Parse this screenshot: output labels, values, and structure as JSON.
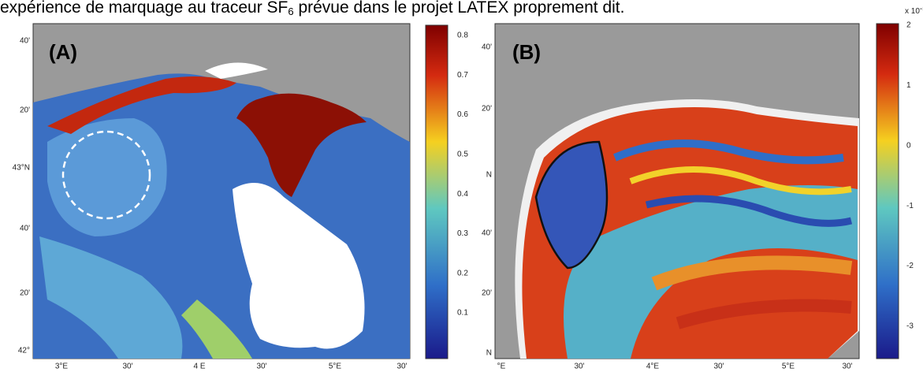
{
  "caption": {
    "text": "expérience de marquage au traceur SF",
    "subscript": "6",
    "rest": " prévue dans le projet LATEX proprement dit."
  },
  "panels": [
    {
      "label": "(A)",
      "y_labels": [
        "40'",
        "20'",
        "43°N",
        "40'",
        "20'",
        "42°"
      ],
      "x_labels": [
        "3°E",
        "30'",
        "4 E",
        "30'",
        "5°E",
        "30'"
      ],
      "colorbar_labels": [
        "0.8",
        "0.7",
        "0.6",
        "0.5",
        "0.4",
        "0.3",
        "0.2",
        "0.1"
      ]
    },
    {
      "label": "(B)",
      "y_labels": [
        "40'",
        "20'",
        "N",
        "40'",
        "20'",
        "N"
      ],
      "x_labels": [
        "°E",
        "30'",
        "4°E",
        "30'",
        "5°E",
        "30'"
      ],
      "colorbar_exponent": {
        "base": "x 10",
        "power": "-5"
      },
      "colorbar_labels": [
        "2",
        "1",
        "0",
        "-1",
        "-2",
        "-3"
      ]
    }
  ]
}
